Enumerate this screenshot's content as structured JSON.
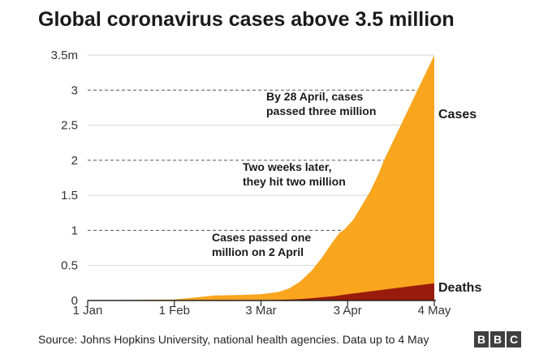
{
  "chart_data": {
    "type": "area",
    "title": "Global coronavirus cases above 3.5 million",
    "xlabel": "",
    "ylabel": "",
    "x_ticks": [
      {
        "label": "1 Jan",
        "day": 0
      },
      {
        "label": "1 Feb",
        "day": 31
      },
      {
        "label": "3 Mar",
        "day": 62
      },
      {
        "label": "3 Apr",
        "day": 93
      },
      {
        "label": "4 May",
        "day": 124
      }
    ],
    "y_ticks": [
      {
        "label": "0",
        "value": 0
      },
      {
        "label": "0.5",
        "value": 0.5
      },
      {
        "label": "1",
        "value": 1
      },
      {
        "label": "1.5",
        "value": 1.5
      },
      {
        "label": "2",
        "value": 2
      },
      {
        "label": "2.5",
        "value": 2.5
      },
      {
        "label": "3",
        "value": 3
      },
      {
        "label": "3.5m",
        "value": 3.5
      }
    ],
    "dashed_gridlines": [
      1,
      2,
      3
    ],
    "xlim": [
      0,
      124
    ],
    "ylim": [
      0,
      3.5
    ],
    "units": "million",
    "series": [
      {
        "name": "Cases",
        "color": "#f9a51e",
        "points": [
          [
            0,
            0
          ],
          [
            20,
            0.01
          ],
          [
            31,
            0.015
          ],
          [
            40,
            0.05
          ],
          [
            45,
            0.07
          ],
          [
            55,
            0.08
          ],
          [
            62,
            0.09
          ],
          [
            68,
            0.12
          ],
          [
            72,
            0.17
          ],
          [
            76,
            0.27
          ],
          [
            80,
            0.42
          ],
          [
            84,
            0.62
          ],
          [
            87,
            0.8
          ],
          [
            90,
            0.96
          ],
          [
            92,
            1.02
          ],
          [
            95,
            1.15
          ],
          [
            98,
            1.35
          ],
          [
            101,
            1.55
          ],
          [
            104,
            1.8
          ],
          [
            106,
            2.0
          ],
          [
            109,
            2.25
          ],
          [
            112,
            2.5
          ],
          [
            115,
            2.75
          ],
          [
            118,
            3.0
          ],
          [
            121,
            3.25
          ],
          [
            124,
            3.5
          ]
        ]
      },
      {
        "name": "Deaths",
        "color": "#991b0c",
        "points": [
          [
            0,
            0
          ],
          [
            62,
            0.003
          ],
          [
            70,
            0.01
          ],
          [
            76,
            0.02
          ],
          [
            82,
            0.04
          ],
          [
            88,
            0.06
          ],
          [
            93,
            0.09
          ],
          [
            99,
            0.12
          ],
          [
            105,
            0.15
          ],
          [
            111,
            0.18
          ],
          [
            117,
            0.21
          ],
          [
            124,
            0.245
          ]
        ]
      }
    ],
    "annotations": [
      {
        "lines": [
          "By 28 April, cases",
          "passed three million"
        ]
      },
      {
        "lines": [
          "Two weeks later,",
          "they hit two million"
        ]
      },
      {
        "lines": [
          "Cases passed one",
          "million on 2 April"
        ]
      }
    ]
  },
  "footer": {
    "source": "Source: Johns Hopkins University, national health agencies. Data up to 4 May",
    "logo_letters": [
      "B",
      "B",
      "C"
    ]
  }
}
